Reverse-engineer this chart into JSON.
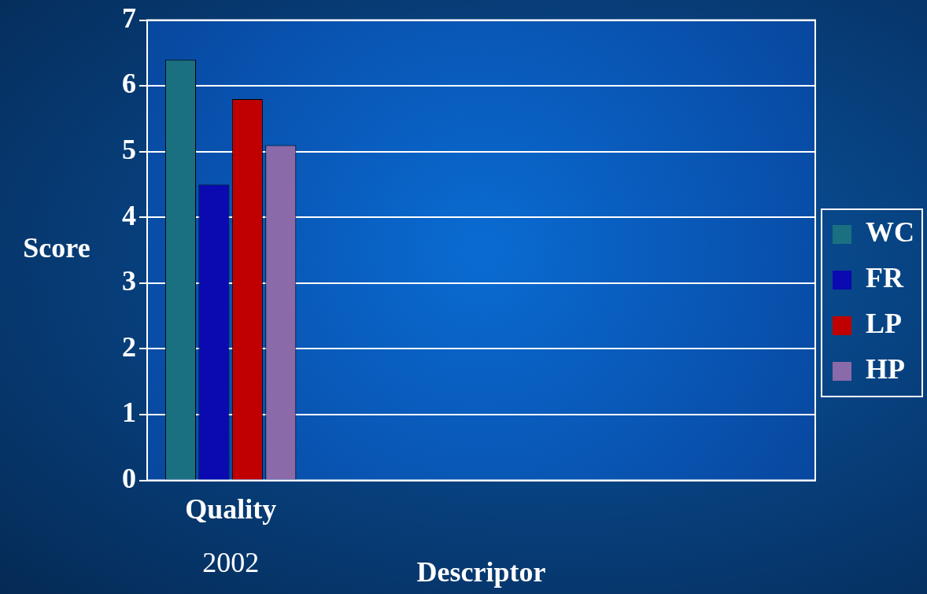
{
  "chart_data": {
    "type": "bar",
    "ylabel": "Score",
    "xlabel": "Descriptor",
    "categories": [
      "Quality",
      null,
      null,
      null
    ],
    "annotations": [
      "2002"
    ],
    "series": [
      {
        "name": "WC",
        "color": "#1a7080",
        "values": [
          6.4,
          null,
          null,
          null
        ]
      },
      {
        "name": "FR",
        "color": "#0a0ab0",
        "values": [
          4.5,
          null,
          null,
          null
        ]
      },
      {
        "name": "LP",
        "color": "#c00000",
        "values": [
          5.8,
          null,
          null,
          null
        ]
      },
      {
        "name": "HP",
        "color": "#8a6aa8",
        "values": [
          5.1,
          null,
          null,
          null
        ]
      }
    ],
    "ylim": [
      0,
      7
    ],
    "yticks": [
      0,
      1,
      2,
      3,
      4,
      5,
      6,
      7
    ],
    "grid": "y",
    "legend": "right"
  }
}
